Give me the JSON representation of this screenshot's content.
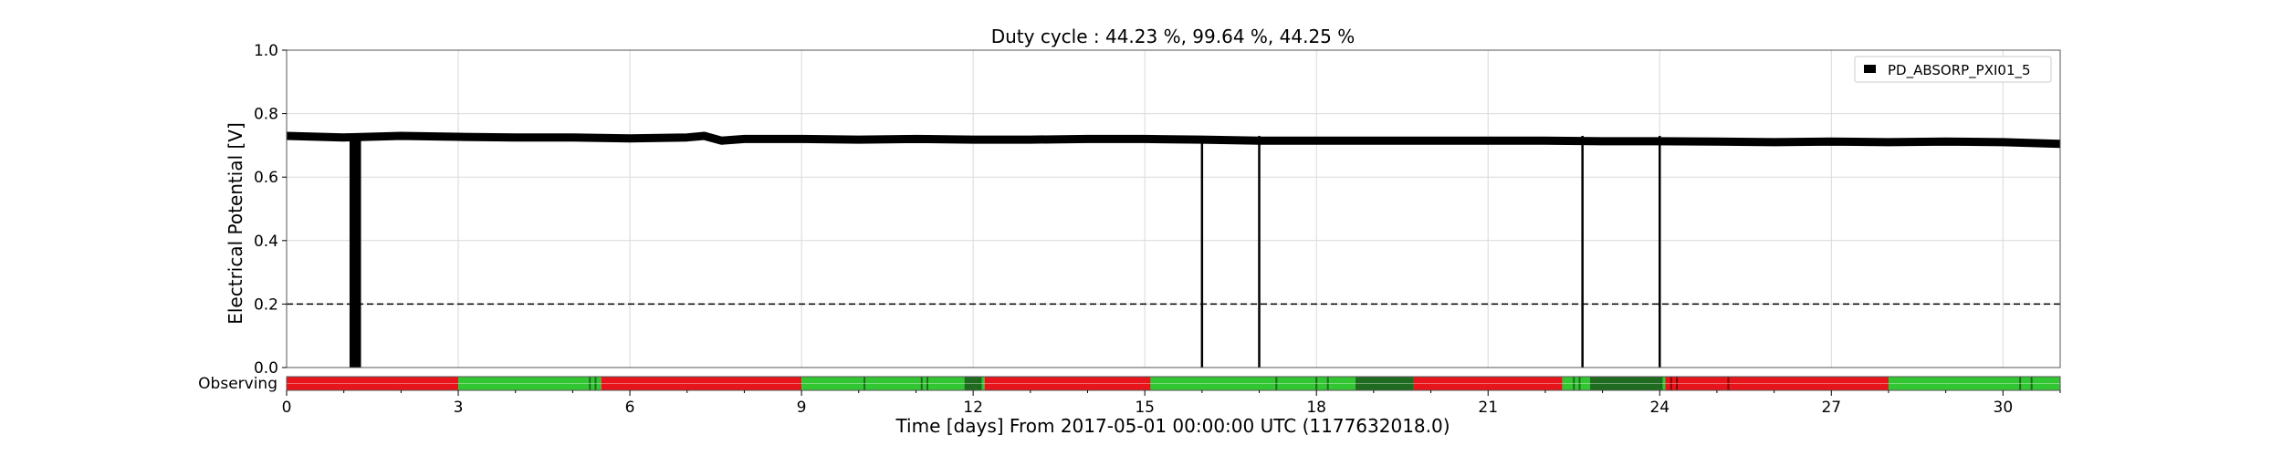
{
  "chart_data": {
    "type": "line",
    "title": "Duty cycle : 44.23 %, 99.64 %, 44.25 %",
    "xlabel": "Time [days] From 2017-05-01 00:00:00 UTC (1177632018.0)",
    "ylabel": "Electrical Potential [V]",
    "xlim": [
      0,
      31
    ],
    "ylim": [
      0,
      1.0
    ],
    "x_ticks": [
      0,
      3,
      6,
      9,
      12,
      15,
      18,
      21,
      24,
      27,
      30
    ],
    "y_ticks": [
      0.0,
      0.2,
      0.4,
      0.6,
      0.8,
      1.0
    ],
    "y_tick_labels": [
      "0.0",
      "0.2",
      "0.4",
      "0.6",
      "0.8",
      "1.0"
    ],
    "grid": true,
    "legend": {
      "position": "top-right",
      "entries": [
        "PD_ABSORP_PXI01_5"
      ]
    },
    "series": [
      {
        "name": "PD_ABSORP_PXI01_5",
        "color": "#000000",
        "x": [
          0,
          1,
          2,
          3,
          4,
          5,
          6,
          7,
          7.3,
          7.6,
          8,
          9,
          10,
          11,
          12,
          13,
          14,
          15,
          16,
          17,
          18,
          19,
          20,
          21,
          22,
          23,
          24,
          25,
          26,
          27,
          28,
          29,
          30,
          31
        ],
        "y": [
          0.73,
          0.725,
          0.73,
          0.727,
          0.725,
          0.725,
          0.722,
          0.725,
          0.73,
          0.715,
          0.72,
          0.72,
          0.718,
          0.72,
          0.718,
          0.718,
          0.72,
          0.72,
          0.718,
          0.715,
          0.715,
          0.715,
          0.715,
          0.715,
          0.715,
          0.713,
          0.713,
          0.712,
          0.71,
          0.712,
          0.71,
          0.712,
          0.71,
          0.705
        ],
        "dropouts": [
          {
            "start": 1.1,
            "end": 1.3,
            "min": 0.0
          },
          {
            "start": 16.0,
            "end": 16.0,
            "min": 0.0
          },
          {
            "start": 17.0,
            "end": 17.0,
            "min": 0.0
          },
          {
            "start": 22.65,
            "end": 22.65,
            "min": 0.0
          },
          {
            "start": 24.0,
            "end": 24.0,
            "min": 0.0
          }
        ]
      }
    ],
    "threshold": {
      "value": 0.2,
      "style": "dashed",
      "color": "#000000"
    },
    "state_bar": {
      "label": "Observing",
      "colors": {
        "off": "#e8141b",
        "on": "#33c633",
        "on_dark": "#1f6b1f"
      },
      "segments": [
        {
          "start": 0,
          "end": 3.0,
          "state": "off"
        },
        {
          "start": 3.0,
          "end": 5.5,
          "state": "on"
        },
        {
          "start": 5.5,
          "end": 9.0,
          "state": "off"
        },
        {
          "start": 9.0,
          "end": 12.2,
          "state": "on"
        },
        {
          "start": 12.2,
          "end": 15.1,
          "state": "off"
        },
        {
          "start": 15.1,
          "end": 19.7,
          "state": "on"
        },
        {
          "start": 19.7,
          "end": 22.3,
          "state": "off"
        },
        {
          "start": 22.3,
          "end": 24.1,
          "state": "on"
        },
        {
          "start": 24.1,
          "end": 28.0,
          "state": "off"
        },
        {
          "start": 28.0,
          "end": 31.0,
          "state": "on"
        }
      ],
      "dark_ticks": [
        5.3,
        5.4,
        10.1,
        11.1,
        11.2,
        11.9,
        12.0,
        12.1,
        17.3,
        18.0,
        18.2,
        18.7,
        18.9,
        19.0,
        19.2,
        22.5,
        22.6,
        22.8,
        22.9,
        23.2,
        23.5,
        24.3,
        25.2,
        30.3,
        30.5
      ],
      "dark_blocks": [
        {
          "start": 11.85,
          "end": 12.15
        },
        {
          "start": 18.7,
          "end": 19.7
        },
        {
          "start": 22.8,
          "end": 24.05
        }
      ],
      "off_ticks": [
        24.2,
        24.3,
        25.2
      ]
    }
  }
}
